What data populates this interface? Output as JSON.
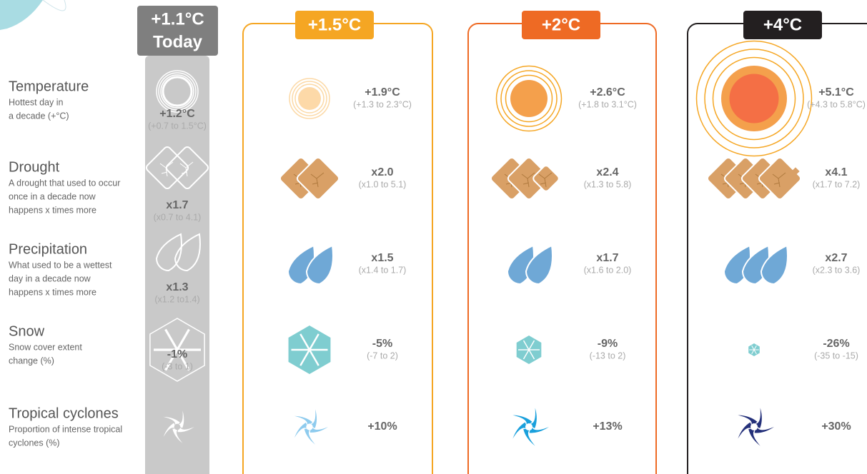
{
  "rows": [
    {
      "label": "Temperature",
      "description": [
        "Hottest day in",
        "a decade (+°C)"
      ]
    },
    {
      "label": "Drought",
      "description": [
        "A drought that used to occur",
        "once in a decade now",
        "happens x times more"
      ]
    },
    {
      "label": "Precipitation",
      "description": [
        "What used to be a wettest",
        "day in a decade now",
        "happens x times more"
      ]
    },
    {
      "label": "Snow",
      "description": [
        "Snow cover extent",
        "change (%)"
      ]
    },
    {
      "label": "Tropical cyclones",
      "description": [
        "Proportion of intense tropical",
        "cyclones (%)"
      ]
    }
  ],
  "columns": [
    {
      "header": "+1.1°C",
      "subheader": "Today",
      "color": "#7f7f7f",
      "cells": [
        {
          "value": "+1.2°C",
          "range": "(+0.7 to 1.5°C)"
        },
        {
          "value": "x1.7",
          "range": "(x0.7 to 4.1)"
        },
        {
          "value": "x1.3",
          "range": "(x1.2 to1.4)"
        },
        {
          "value": "-1%",
          "range": "(-3 to 1)"
        }
      ]
    },
    {
      "header": "+1.5°C",
      "color": "#f5a623",
      "cells": [
        {
          "value": "+1.9°C",
          "range": "(+1.3 to 2.3°C)"
        },
        {
          "value": "x2.0",
          "range": "(x1.0 to 5.1)"
        },
        {
          "value": "x1.5",
          "range": "(x1.4 to 1.7)"
        },
        {
          "value": "-5%",
          "range": "(-7 to 2)"
        },
        {
          "value": "+10%"
        }
      ]
    },
    {
      "header": "+2°C",
      "color": "#ee6a24",
      "cells": [
        {
          "value": "+2.6°C",
          "range": "(+1.8 to 3.1°C)"
        },
        {
          "value": "x2.4",
          "range": "(x1.3 to 5.8)"
        },
        {
          "value": "x1.7",
          "range": "(x1.6 to 2.0)"
        },
        {
          "value": "-9%",
          "range": "(-13 to 2)"
        },
        {
          "value": "+13%"
        }
      ]
    },
    {
      "header": "+4°C",
      "color": "#231f20",
      "cells": [
        {
          "value": "+5.1°C",
          "range": "(+4.3 to 5.8°C)"
        },
        {
          "value": "x4.1",
          "range": "(x1.7 to 7.2)"
        },
        {
          "value": "x2.7",
          "range": "(x2.3 to 3.6)"
        },
        {
          "value": "-26%",
          "range": "(-35 to -15)"
        },
        {
          "value": "+30%"
        }
      ]
    }
  ]
}
